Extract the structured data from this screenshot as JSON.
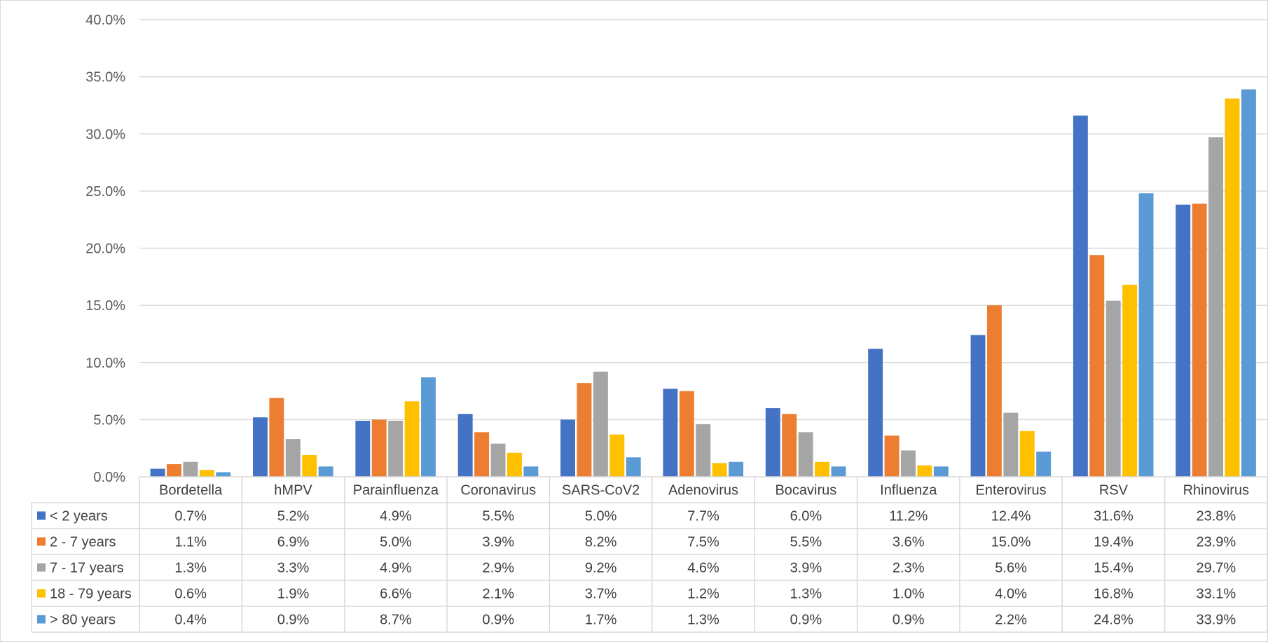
{
  "chart_data": {
    "type": "bar",
    "categories": [
      "Bordetella",
      "hMPV",
      "Parainfluenza",
      "Coronavirus",
      "SARS-CoV2",
      "Adenovirus",
      "Bocavirus",
      "Influenza",
      "Enterovirus",
      "RSV",
      "Rhinovirus"
    ],
    "series": [
      {
        "name": "< 2 years",
        "color": "#4472c4",
        "values": [
          0.7,
          5.2,
          4.9,
          5.5,
          5.0,
          7.7,
          6.0,
          11.2,
          12.4,
          31.6,
          23.8
        ],
        "labels": [
          "0.7%",
          "5.2%",
          "4.9%",
          "5.5%",
          "5.0%",
          "7.7%",
          "6.0%",
          "11.2%",
          "12.4%",
          "31.6%",
          "23.8%"
        ]
      },
      {
        "name": "2 - 7 years",
        "color": "#ed7d31",
        "values": [
          1.1,
          6.9,
          5.0,
          3.9,
          8.2,
          7.5,
          5.5,
          3.6,
          15.0,
          19.4,
          23.9
        ],
        "labels": [
          "1.1%",
          "6.9%",
          "5.0%",
          "3.9%",
          "8.2%",
          "7.5%",
          "5.5%",
          "3.6%",
          "15.0%",
          "19.4%",
          "23.9%"
        ]
      },
      {
        "name": "7 - 17 years",
        "color": "#a5a5a5",
        "values": [
          1.3,
          3.3,
          4.9,
          2.9,
          9.2,
          4.6,
          3.9,
          2.3,
          5.6,
          15.4,
          29.7
        ],
        "labels": [
          "1.3%",
          "3.3%",
          "4.9%",
          "2.9%",
          "9.2%",
          "4.6%",
          "3.9%",
          "2.3%",
          "5.6%",
          "15.4%",
          "29.7%"
        ]
      },
      {
        "name": "18 - 79 years",
        "color": "#ffc000",
        "values": [
          0.6,
          1.9,
          6.6,
          2.1,
          3.7,
          1.2,
          1.3,
          1.0,
          4.0,
          16.8,
          33.1
        ],
        "labels": [
          "0.6%",
          "1.9%",
          "6.6%",
          "2.1%",
          "3.7%",
          "1.2%",
          "1.3%",
          "1.0%",
          "4.0%",
          "16.8%",
          "33.1%"
        ]
      },
      {
        "name": "> 80 years",
        "color": "#5b9bd5",
        "values": [
          0.4,
          0.9,
          8.7,
          0.9,
          1.7,
          1.3,
          0.9,
          0.9,
          2.2,
          24.8,
          33.9
        ],
        "labels": [
          "0.4%",
          "0.9%",
          "8.7%",
          "0.9%",
          "1.7%",
          "1.3%",
          "0.9%",
          "0.9%",
          "2.2%",
          "24.8%",
          "33.9%"
        ]
      }
    ],
    "ylim": [
      0,
      40
    ],
    "yticks": [
      0,
      5,
      10,
      15,
      20,
      25,
      30,
      35,
      40
    ],
    "ytick_labels": [
      "0.0%",
      "5.0%",
      "10.0%",
      "15.0%",
      "20.0%",
      "25.0%",
      "30.0%",
      "35.0%",
      "40.0%"
    ],
    "grid": true,
    "legend": "data-table"
  }
}
